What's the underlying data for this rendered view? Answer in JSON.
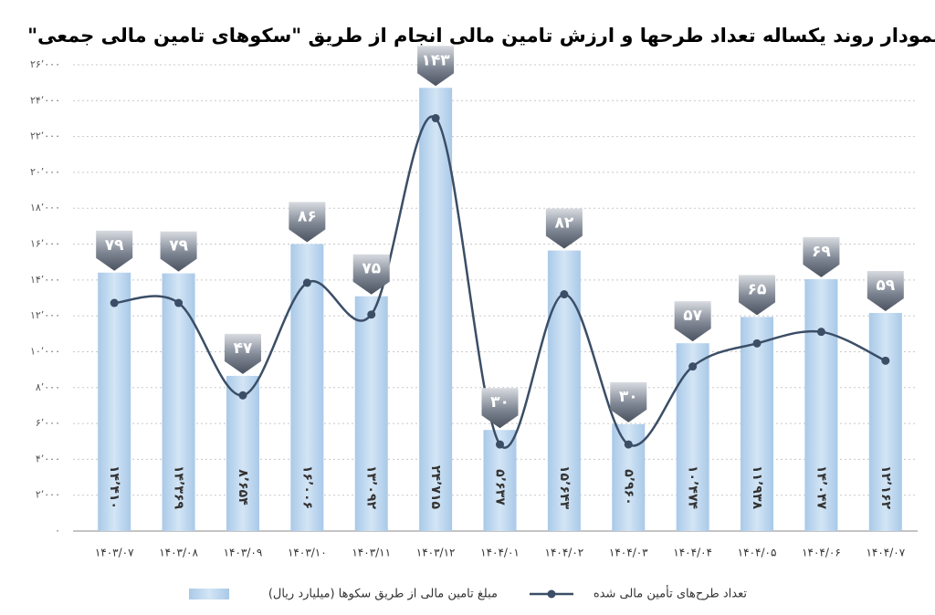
{
  "chart_data": {
    "type": "bar-line",
    "title": "نمودار روند یکساله تعداد طرحها و ارزش تامین مالی انجام از طریق \"سکوهای تامین مالی جمعی\"",
    "categories": [
      "۱۴۰۳/۰۷",
      "۱۴۰۳/۰۸",
      "۱۴۰۳/۰۹",
      "۱۴۰۳/۱۰",
      "۱۴۰۳/۱۱",
      "۱۴۰۳/۱۲",
      "۱۴۰۴/۰۱",
      "۱۴۰۴/۰۲",
      "۱۴۰۴/۰۳",
      "۱۴۰۴/۰۴",
      "۱۴۰۴/۰۵",
      "۱۴۰۴/۰۶",
      "۱۴۰۴/۰۷"
    ],
    "series": [
      {
        "name": "مبلغ تامین مالی از طریق سکوها (میلیارد ریال)",
        "type": "bar",
        "axis": "y",
        "color": "#bdd7ee",
        "values": [
          14410,
          14369,
          8654,
          16006,
          13092,
          24715,
          5637,
          15643,
          5960,
          10474,
          11938,
          14047,
          12162
        ],
        "value_labels": [
          "۱۴٬۴۱۰",
          "۱۴٬۳۶۹",
          "۸٬۶۵۴",
          "۱۶٬۰۰۶",
          "۱۳٬۰۹۲",
          "۲۴٬۷۱۵",
          "۵٬۶۳۷",
          "۱۵٬۶۴۳",
          "۵٬۹۶۰",
          "۱۰٬۴۷۴",
          "۱۱٬۹۳۸",
          "۱۴٬۰۴۷",
          "۱۲٬۱۶۲"
        ]
      },
      {
        "name": "تعداد طرح‌های تأمین مالی شده",
        "type": "line",
        "axis": "y2",
        "color": "#3b4e66",
        "values": [
          79,
          79,
          47,
          86,
          75,
          143,
          30,
          82,
          30,
          57,
          65,
          69,
          59
        ],
        "value_labels": [
          "۷۹",
          "۷۹",
          "۴۷",
          "۸۶",
          "۷۵",
          "۱۴۳",
          "۳۰",
          "۸۲",
          "۳۰",
          "۵۷",
          "۶۵",
          "۶۹",
          "۵۹"
        ]
      }
    ],
    "ylim": [
      0,
      26000
    ],
    "yticks": [
      {
        "value": 0,
        "label": "۰"
      },
      {
        "value": 2000,
        "label": "۲٬۰۰۰"
      },
      {
        "value": 4000,
        "label": "۴٬۰۰۰"
      },
      {
        "value": 6000,
        "label": "۶٬۰۰۰"
      },
      {
        "value": 8000,
        "label": "۸٬۰۰۰"
      },
      {
        "value": 10000,
        "label": "۱۰٬۰۰۰"
      },
      {
        "value": 12000,
        "label": "۱۲٬۰۰۰"
      },
      {
        "value": 14000,
        "label": "۱۴٬۰۰۰"
      },
      {
        "value": 16000,
        "label": "۱۶٬۰۰۰"
      },
      {
        "value": 18000,
        "label": "۱۸٬۰۰۰"
      },
      {
        "value": 20000,
        "label": "۲۰٬۰۰۰"
      },
      {
        "value": 22000,
        "label": "۲۲٬۰۰۰"
      },
      {
        "value": 24000,
        "label": "۲۴٬۰۰۰"
      },
      {
        "value": 26000,
        "label": "۲۶٬۰۰۰"
      }
    ],
    "y2lim": [
      0,
      161.5
    ],
    "grid": true
  }
}
